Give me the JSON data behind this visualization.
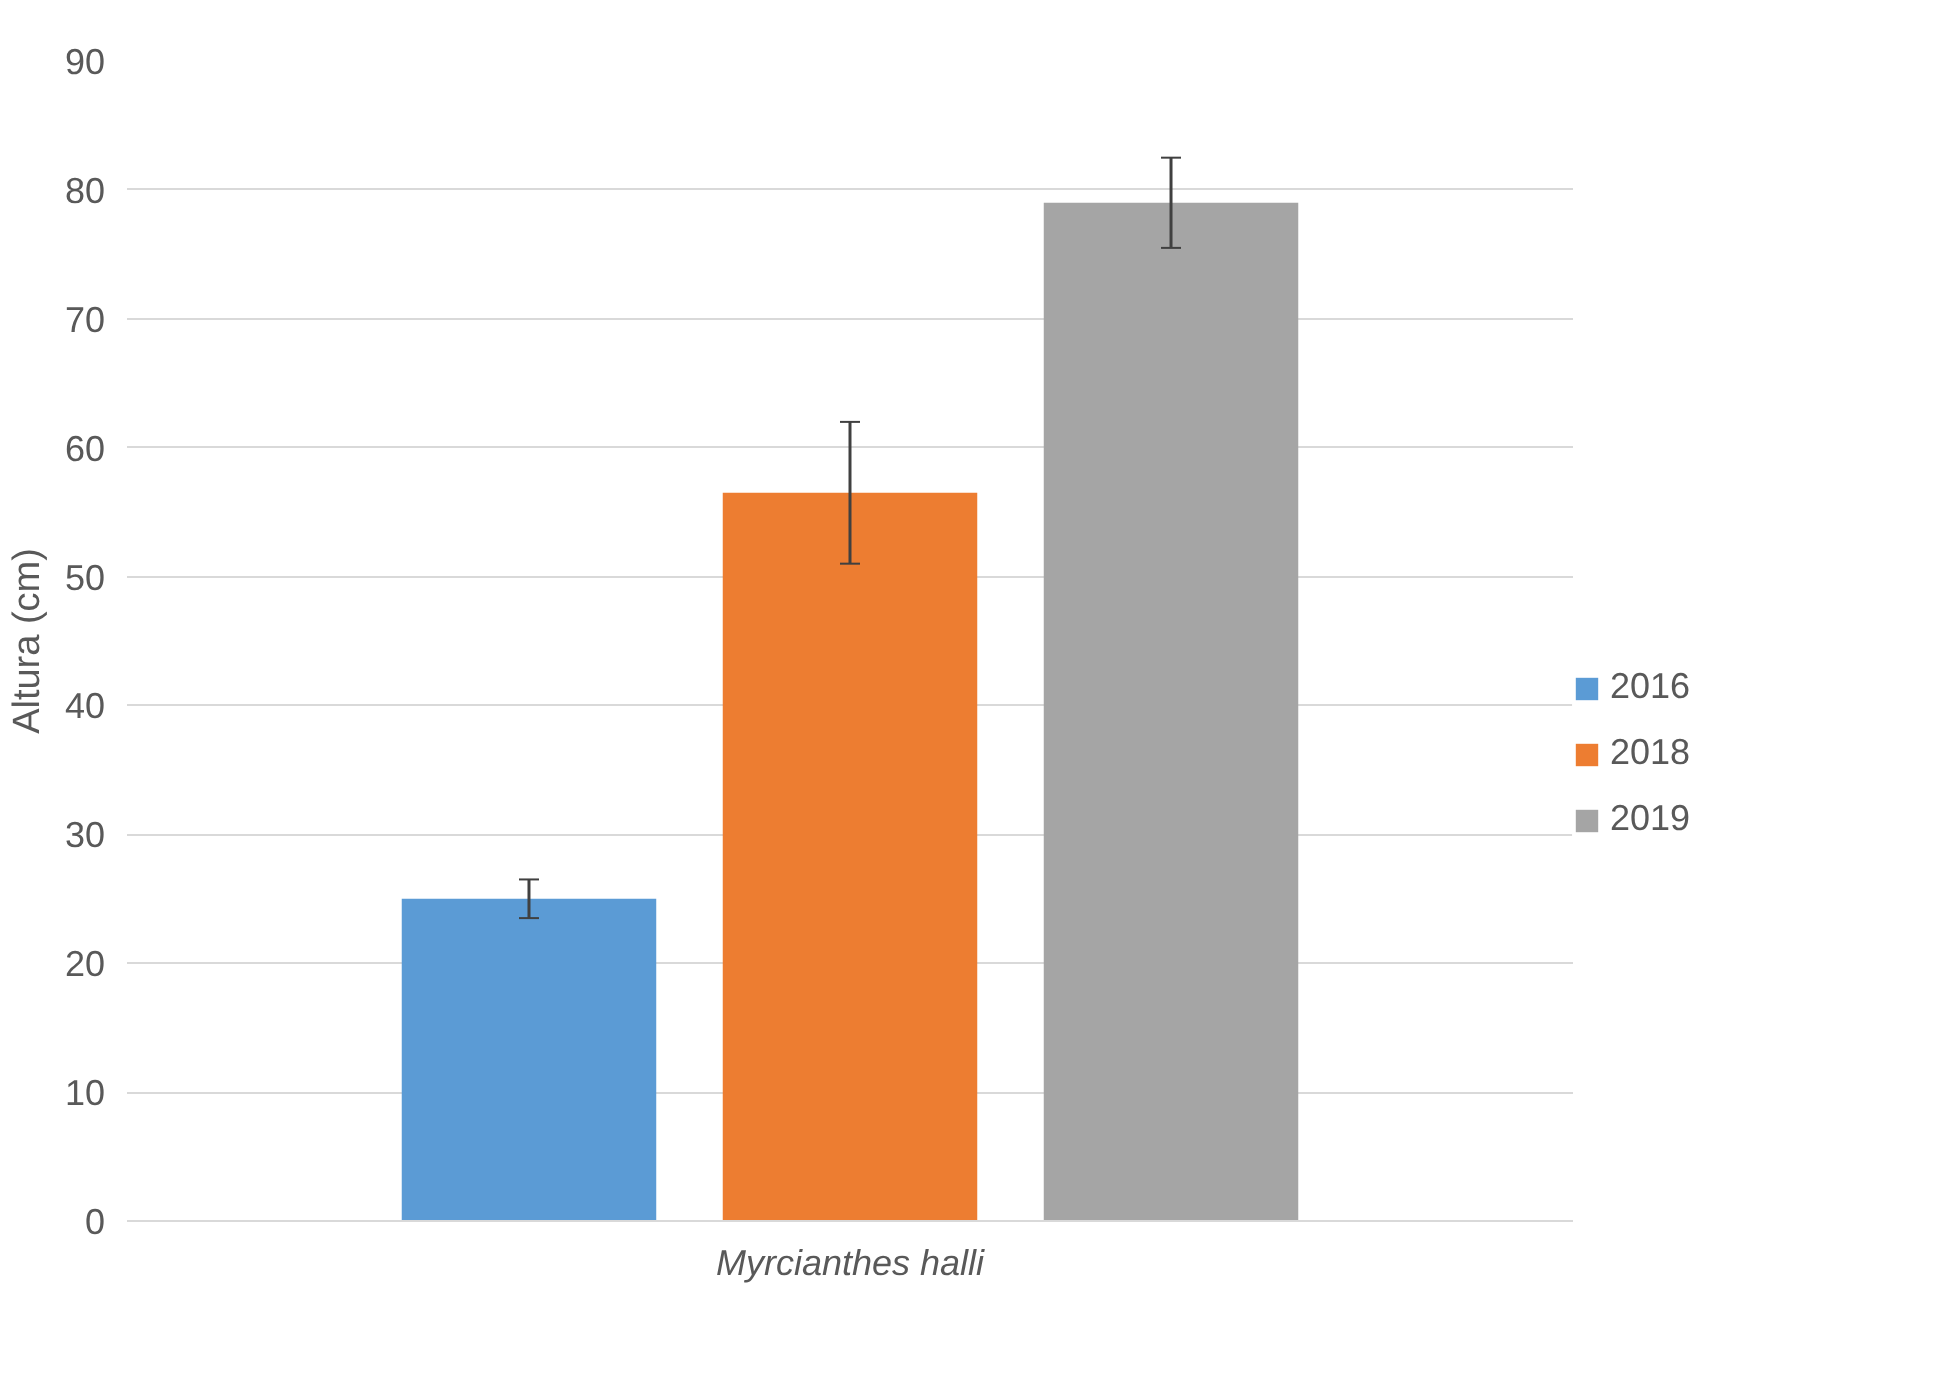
{
  "chart_data": {
    "type": "bar",
    "ylabel": "Altura (cm)",
    "categories": [
      "Myrcianthes halli"
    ],
    "series": [
      {
        "name": "2016",
        "color": "#5b9bd5",
        "values": [
          25
        ],
        "errors": [
          1.5
        ]
      },
      {
        "name": "2018",
        "color": "#ed7d31",
        "values": [
          56.5
        ],
        "errors": [
          5.5
        ]
      },
      {
        "name": "2019",
        "color": "#a5a5a5",
        "values": [
          79
        ],
        "errors": [
          3.5
        ]
      }
    ],
    "ylim": [
      0,
      90
    ],
    "yticks": [
      0,
      10,
      20,
      30,
      40,
      50,
      60,
      70,
      80,
      90
    ],
    "grid": "y",
    "legend": "right"
  }
}
